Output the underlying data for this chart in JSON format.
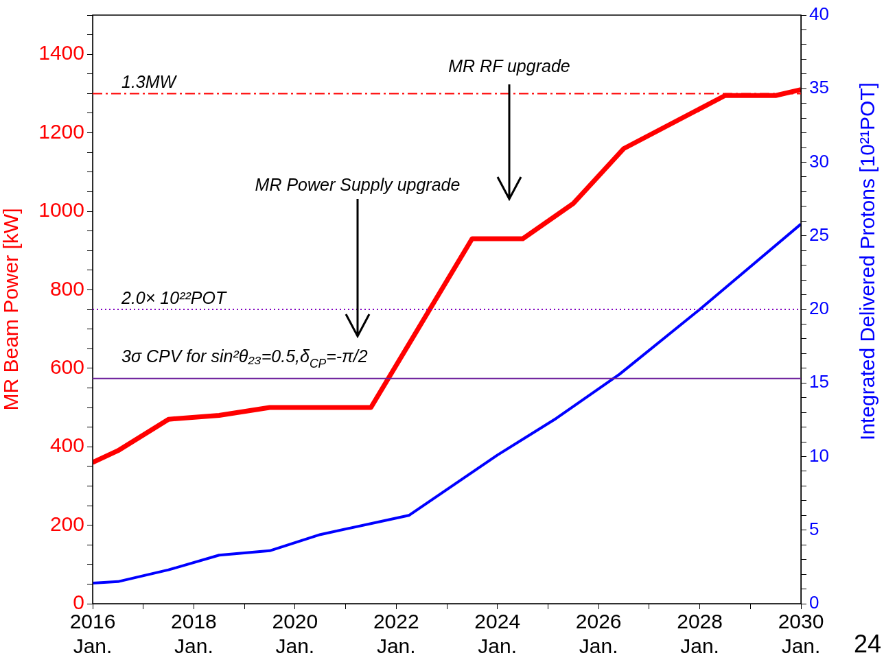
{
  "chart_data": {
    "type": "line",
    "xlabel": null,
    "ylabel": "MR Beam Power [kW]",
    "y2label": "Integrated Delivered Protons [10²¹POT]",
    "xlim": [
      "2016-01",
      "2030-01"
    ],
    "xticks": [
      {
        "value": "2016-01",
        "label": "2016\nJan."
      },
      {
        "value": "2017-01",
        "label": null
      },
      {
        "value": "2018-01",
        "label": "2018\nJan."
      },
      {
        "value": "2019-01",
        "label": null
      },
      {
        "value": "2020-01",
        "label": "2020\nJan."
      },
      {
        "value": "2021-01",
        "label": null
      },
      {
        "value": "2022-01",
        "label": "2022\nJan."
      },
      {
        "value": "2023-01",
        "label": null
      },
      {
        "value": "2024-01",
        "label": "2024\nJan."
      },
      {
        "value": "2025-01",
        "label": null
      },
      {
        "value": "2026-01",
        "label": "2026\nJan."
      },
      {
        "value": "2027-01",
        "label": null
      },
      {
        "value": "2028-01",
        "label": "2028\nJan."
      },
      {
        "value": "2029-01",
        "label": null
      },
      {
        "value": "2030-01",
        "label": "2030\nJan."
      }
    ],
    "ylim": [
      0,
      1500
    ],
    "yticks": [
      0,
      {
        "value": 50,
        "label": null
      },
      {
        "value": 100,
        "label": null
      },
      {
        "value": 150,
        "label": null
      },
      200,
      {
        "value": 250,
        "label": null
      },
      {
        "value": 300,
        "label": null
      },
      {
        "value": 350,
        "label": null
      },
      400,
      {
        "value": 450,
        "label": null
      },
      {
        "value": 500,
        "label": null
      },
      {
        "value": 550,
        "label": null
      },
      600,
      {
        "value": 650,
        "label": null
      },
      {
        "value": 700,
        "label": null
      },
      {
        "value": 750,
        "label": null
      },
      800,
      {
        "value": 850,
        "label": null
      },
      {
        "value": 900,
        "label": null
      },
      {
        "value": 950,
        "label": null
      },
      1000,
      {
        "value": 1050,
        "label": null
      },
      {
        "value": 1100,
        "label": null
      },
      {
        "value": 1150,
        "label": null
      },
      1200,
      {
        "value": 1250,
        "label": null
      },
      {
        "value": 1300,
        "label": null
      },
      {
        "value": 1350,
        "label": null
      },
      1400,
      {
        "value": 1450,
        "label": null
      },
      {
        "value": 1500,
        "label": null
      }
    ],
    "y2lim": [
      0,
      40
    ],
    "y2ticks": [
      0,
      {
        "value": 1,
        "label": null
      },
      {
        "value": 2,
        "label": null
      },
      {
        "value": 3,
        "label": null
      },
      {
        "value": 4,
        "label": null
      },
      5,
      {
        "value": 6,
        "label": null
      },
      {
        "value": 7,
        "label": null
      },
      {
        "value": 8,
        "label": null
      },
      {
        "value": 9,
        "label": null
      },
      10,
      {
        "value": 11,
        "label": null
      },
      {
        "value": 12,
        "label": null
      },
      {
        "value": 13,
        "label": null
      },
      {
        "value": 14,
        "label": null
      },
      15,
      {
        "value": 16,
        "label": null
      },
      {
        "value": 17,
        "label": null
      },
      {
        "value": 18,
        "label": null
      },
      {
        "value": 19,
        "label": null
      },
      20,
      {
        "value": 21,
        "label": null
      },
      {
        "value": 22,
        "label": null
      },
      {
        "value": 23,
        "label": null
      },
      {
        "value": 24,
        "label": null
      },
      25,
      {
        "value": 26,
        "label": null
      },
      {
        "value": 27,
        "label": null
      },
      {
        "value": 28,
        "label": null
      },
      {
        "value": 29,
        "label": null
      },
      30,
      {
        "value": 31,
        "label": null
      },
      {
        "value": 32,
        "label": null
      },
      {
        "value": 33,
        "label": null
      },
      {
        "value": 34,
        "label": null
      },
      35,
      {
        "value": 36,
        "label": null
      },
      {
        "value": 37,
        "label": null
      },
      {
        "value": 38,
        "label": null
      },
      {
        "value": 39,
        "label": null
      },
      40
    ],
    "series": [
      {
        "color": "#ff0000",
        "x": [
          "2016-01",
          "2016-07",
          "2017-07",
          "2018-07",
          "2019-07",
          "2021-07",
          "2023-07",
          "2024-07",
          "2025-07",
          "2026-07",
          "2028-07",
          "2029-07",
          "2030-01"
        ],
        "values": [
          360,
          390,
          470,
          480,
          500,
          500,
          930,
          930,
          1020,
          1160,
          1295,
          1295,
          1310
        ]
      },
      {
        "color": "#0000ff",
        "axis": "y2",
        "x": [
          "2016-01",
          "2016-07",
          "2017-07",
          "2018-07",
          "2019-07",
          "2020-07",
          "2022-04",
          "2024-01",
          "2025-03",
          "2026-06",
          "2028-01",
          "2030-01"
        ],
        "values": [
          1.4,
          1.5,
          2.3,
          3.3,
          3.6,
          4.7,
          6.0,
          10.1,
          12.6,
          15.6,
          20.0,
          25.8
        ]
      }
    ],
    "ref_lines": [
      {
        "axis": "y",
        "value": 1300,
        "label": "1.3MW",
        "color": "#ff0000",
        "line_style": "dashdot"
      },
      {
        "axis": "y2",
        "value": 20,
        "label": "2.0× 10²²POT",
        "color": "#8000c0",
        "line_style": "dotted"
      },
      {
        "axis": "y2",
        "value": 15.3,
        "color": "#6a1b9a",
        "line_style": "solid"
      }
    ],
    "annotations": [
      "3σ CPV for sin²θ₂₃=0.5,δ$_{CP}$=-π/2",
      "MR Power Supply upgrade",
      "MR RF upgrade",
      "24"
    ],
    "grid": false,
    "legend": false,
    "marker": "none"
  }
}
